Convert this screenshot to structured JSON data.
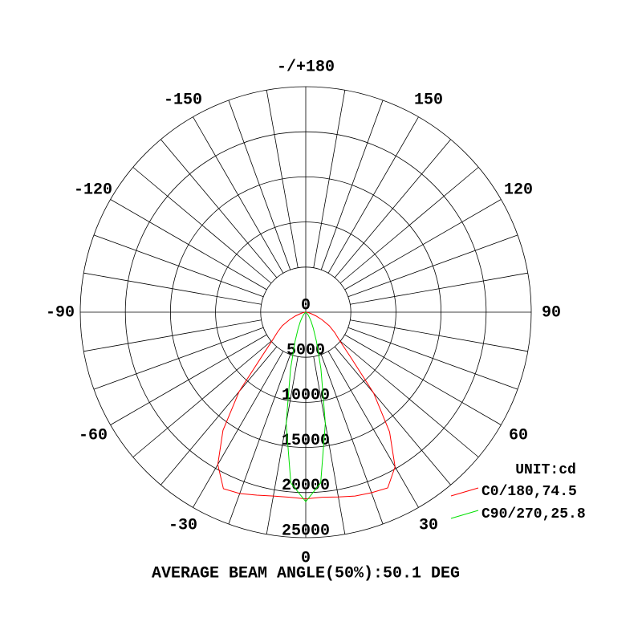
{
  "chart_data": {
    "type": "polar",
    "title": "AVERAGE BEAM ANGLE(50%):50.1 DEG",
    "unit_label": "UNIT:cd",
    "angles": [
      -90,
      -85,
      -80,
      -75,
      -70,
      -65,
      -60,
      -55,
      -50,
      -45,
      -40,
      -35,
      -30,
      -25,
      -20,
      -15,
      -10,
      -5,
      0,
      5,
      10,
      15,
      20,
      25,
      30,
      35,
      40,
      45,
      50,
      55,
      60,
      65,
      70,
      75,
      80,
      85,
      90
    ],
    "series": [
      {
        "name": "C0/180,74.5",
        "color": "#ff0000",
        "values": [
          0,
          100,
          300,
          600,
          1200,
          2000,
          3000,
          3800,
          4800,
          6800,
          11500,
          16000,
          19500,
          21600,
          21400,
          21000,
          20700,
          20600,
          20700,
          20600,
          20800,
          21100,
          21300,
          21500,
          19800,
          16200,
          11700,
          7000,
          4900,
          3900,
          3000,
          2000,
          1200,
          600,
          300,
          100,
          0
        ]
      },
      {
        "name": "C90/270,25.8",
        "color": "#00e000",
        "values": [
          0,
          0,
          0,
          0,
          0,
          0,
          0,
          0,
          100,
          200,
          400,
          700,
          1200,
          2000,
          3500,
          6500,
          12500,
          19000,
          21000,
          19000,
          12500,
          6500,
          3500,
          2000,
          1200,
          700,
          400,
          200,
          100,
          0,
          0,
          0,
          0,
          0,
          0,
          0,
          0
        ]
      }
    ],
    "rlim": [
      0,
      25000
    ],
    "rticks": [
      0,
      5000,
      10000,
      15000,
      20000,
      25000
    ],
    "thetaticks": [
      {
        "value": 180,
        "label": "-/+180"
      },
      150,
      120,
      90,
      60,
      30,
      0,
      -30,
      -60,
      -90,
      -120,
      -150
    ],
    "theta_gridlines": [
      -170,
      -160,
      -150,
      -140,
      -130,
      -120,
      -110,
      -100,
      -90,
      -80,
      -70,
      -60,
      -50,
      -40,
      -30,
      -20,
      -10,
      0,
      10,
      20,
      30,
      40,
      50,
      60,
      70,
      80,
      90,
      100,
      110,
      120,
      130,
      140,
      150,
      160,
      170,
      180
    ]
  }
}
